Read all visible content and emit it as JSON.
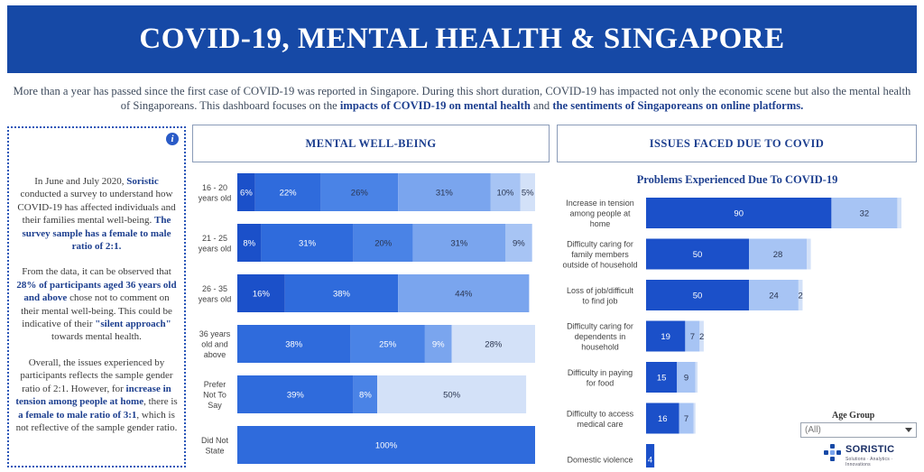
{
  "header": {
    "title": "COVID-19, MENTAL HEALTH & SINGAPORE"
  },
  "intro": {
    "part1": "More than a year has passed since the first case of COVID-19 was reported in Singapore. During this short duration, COVID-19 has impacted not only the economic scene but also the mental health of Singaporeans. This dashboard focuses on the ",
    "bold1": "impacts of COVID-19 on mental health",
    "part2": " and ",
    "bold2": "the sentiments of Singaporeans on online platforms."
  },
  "sidebar": {
    "info_icon_char": "i",
    "p1_a": "In June and July 2020, ",
    "p1_b": "Soristic",
    "p1_c": " conducted a survey to understand how COVID-19 has affected individuals and their families mental well-being. ",
    "p1_d": "The survey sample has a female to male ratio of 2:1.",
    "p2_a": "From the data, it can be observed that ",
    "p2_b": "28% of participants aged 36 years old and above",
    "p2_c": " chose not to comment on their mental well-being. This could be indicative of their ",
    "p2_d": "\"silent approach\"",
    "p2_e": " towards mental health.",
    "p3_a": "Overall, the issues experienced by participants reflects the sample gender ratio of 2:1. However, for ",
    "p3_b": "increase in tension among people at home",
    "p3_c": ", there is ",
    "p3_d": "a female to male ratio of 3:1",
    "p3_e": ", which is not reflective of the sample gender ratio."
  },
  "panels": {
    "mental_title": "MENTAL WELL-BEING",
    "issues_title": "ISSUES FACED DUE TO COVID"
  },
  "filter": {
    "label": "Age Group",
    "value": "(All)"
  },
  "logo": {
    "name": "SORISTIC",
    "tagline": "Solutions · Analytics · Innovations"
  },
  "colors": [
    "#1b50c9",
    "#2f6bdc",
    "#4a83e6",
    "#7aa5ee",
    "#a7c4f4",
    "#d3e1f8"
  ],
  "chart_data": [
    {
      "type": "bar",
      "stacked": "horizontal-100",
      "title": "MENTAL WELL-BEING",
      "categories": [
        [
          "16 - 20",
          "years old"
        ],
        [
          "21 - 25",
          "years old"
        ],
        [
          "26 - 35",
          "years old"
        ],
        [
          "36 years",
          "old and",
          "above"
        ],
        [
          "Prefer",
          "Not To",
          "Say"
        ],
        [
          "Did Not",
          "State"
        ]
      ],
      "rows": [
        [
          6,
          22,
          26,
          31,
          10,
          5
        ],
        [
          8,
          31,
          20,
          31,
          9,
          0
        ],
        [
          16,
          38,
          0,
          44,
          0,
          0
        ],
        [
          38,
          0,
          25,
          9,
          28,
          0
        ],
        [
          39,
          0,
          8,
          0,
          50,
          0
        ],
        [
          100,
          0,
          0,
          0,
          0,
          0
        ]
      ],
      "row_colors": [
        [
          "#1b50c9",
          "#2f6bdc",
          "#4a83e6",
          "#7aa5ee",
          "#a7c4f4",
          "#d3e1f8"
        ],
        [
          "#1b50c9",
          "#2f6bdc",
          "#4a83e6",
          "#7aa5ee",
          "#a7c4f4",
          "#d3e1f8"
        ],
        [
          "#1b50c9",
          "#2f6bdc",
          "#4a83e6",
          "#7aa5ee",
          "#a7c4f4",
          "#d3e1f8"
        ],
        [
          "#2f6bdc",
          "#2f6bdc",
          "#4a83e6",
          "#7aa5ee",
          "#d3e1f8",
          "#d3e1f8"
        ],
        [
          "#2f6bdc",
          "#2f6bdc",
          "#4a83e6",
          "#7aa5ee",
          "#d3e1f8",
          "#d3e1f8"
        ],
        [
          "#2f6bdc",
          "#2f6bdc",
          "#4a83e6",
          "#7aa5ee",
          "#d3e1f8",
          "#d3e1f8"
        ]
      ],
      "label_suffix": "%"
    },
    {
      "type": "bar",
      "stacked": "horizontal",
      "title": "Problems Experienced Due To COVID-19",
      "categories": [
        [
          "Increase in tension",
          "among people at",
          "home"
        ],
        [
          "Difficulty caring for",
          "family members",
          "outside of household"
        ],
        [
          "Loss of job/difficult",
          "to find job"
        ],
        [
          "Difficulty caring for",
          "dependents in",
          "household"
        ],
        [
          "Difficulty in paying",
          "for food"
        ],
        [
          "Difficulty to access",
          "medical care"
        ],
        [
          "Domestic violence"
        ]
      ],
      "series": [
        {
          "values": [
            90,
            50,
            50,
            19,
            15,
            16,
            4
          ],
          "color": "#1b50c9"
        },
        {
          "values": [
            32,
            28,
            24,
            7,
            9,
            7,
            0
          ],
          "color": "#a7c4f4"
        },
        {
          "values": [
            2,
            2,
            2,
            2,
            1,
            1,
            0
          ],
          "color": "#d3e1f8"
        }
      ],
      "labels": [
        [
          "90",
          "32",
          ""
        ],
        [
          "50",
          "28",
          ""
        ],
        [
          "50",
          "24",
          "2"
        ],
        [
          "19",
          "7",
          "2"
        ],
        [
          "15",
          "9",
          ""
        ],
        [
          "16",
          "7",
          ""
        ],
        [
          "4",
          "",
          ""
        ]
      ],
      "xlim": [
        0,
        124
      ]
    }
  ]
}
